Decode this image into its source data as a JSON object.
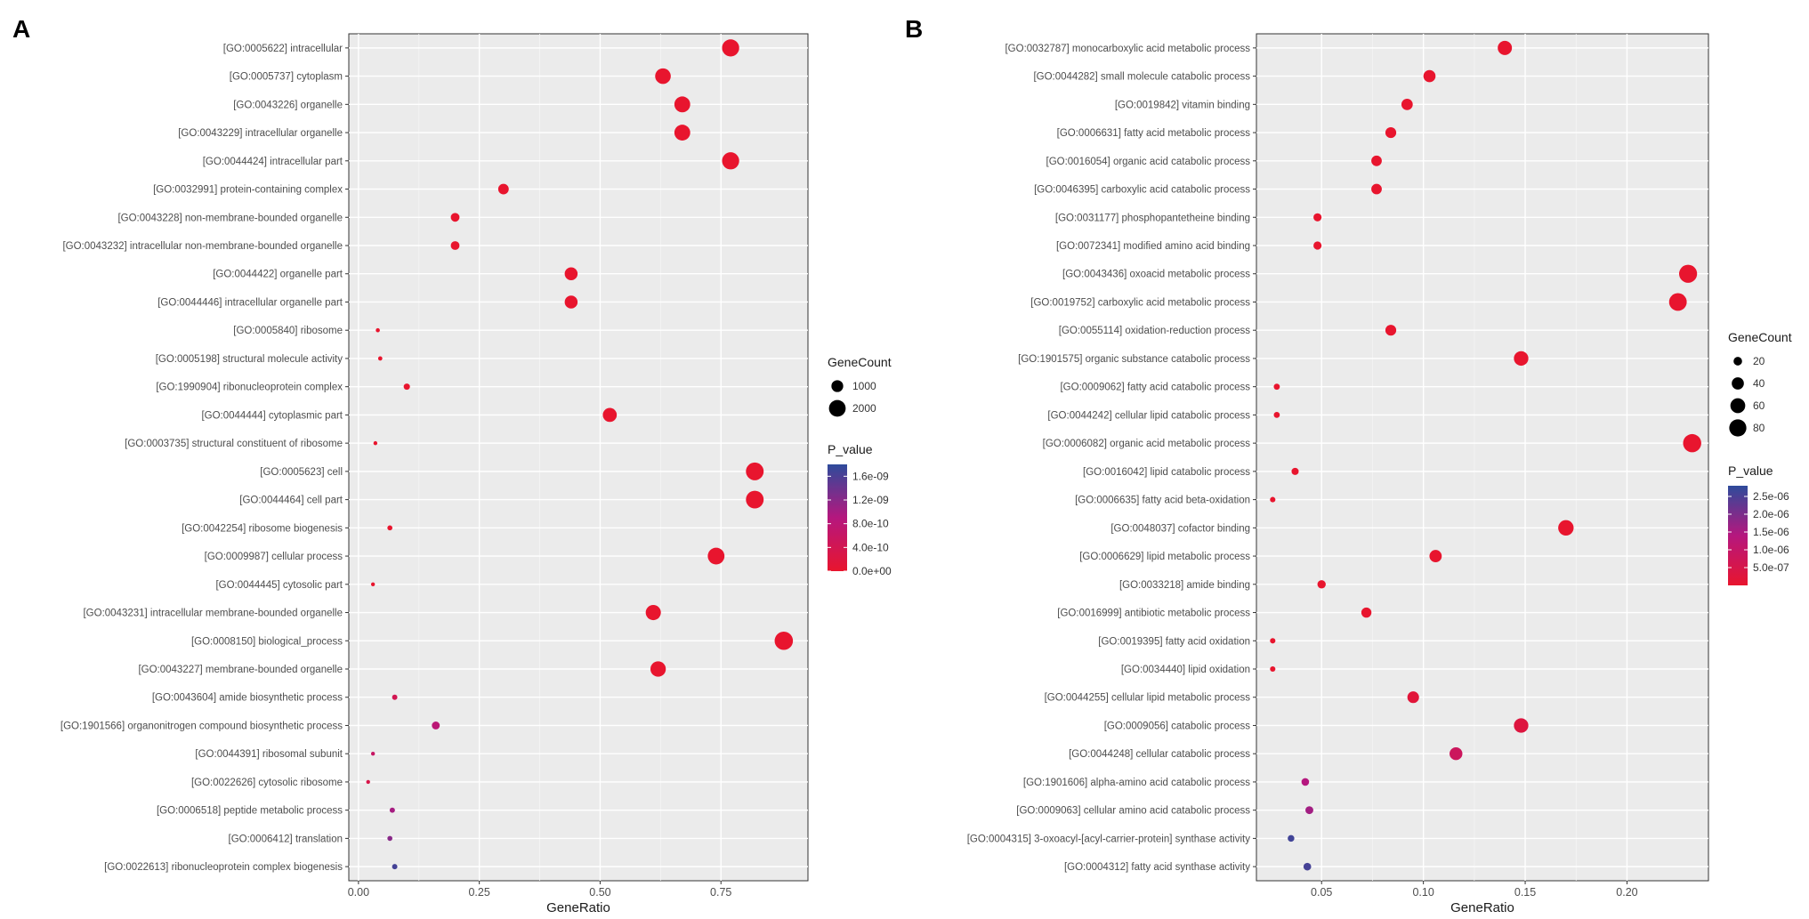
{
  "colors": {
    "low_p": "#e8152e",
    "mid_p": "#b5177e",
    "high_p": "#2e4b9b",
    "panel_bg": "#ebebeb",
    "grid": "#ffffff"
  },
  "chart_data": [
    {
      "panel": "A",
      "type": "scatter",
      "xlabel": "GeneRatio",
      "xlim": [
        -0.02,
        0.93
      ],
      "xticks": [
        "0.00",
        "0.25",
        "0.50",
        "0.75"
      ],
      "xtick_values": [
        0,
        0.25,
        0.5,
        0.75
      ],
      "size_legend": {
        "title": "GeneCount",
        "labels": [
          "1000",
          "2000"
        ],
        "values": [
          1000,
          2000
        ]
      },
      "color_legend": {
        "title": "P_value",
        "labels": [
          "1.6e-09",
          "1.2e-09",
          "8.0e-10",
          "4.0e-10",
          "0.0e+00"
        ],
        "values": [
          1.6e-09,
          1.2e-09,
          8e-10,
          4e-10,
          0
        ],
        "range": [
          0,
          1.8e-09
        ]
      },
      "size_range": [
        0,
        2500
      ],
      "terms": [
        {
          "label": "[GO:0005622] intracellular",
          "x": 0.77,
          "count": 2100,
          "p": 0
        },
        {
          "label": "[GO:0005737] cytoplasm",
          "x": 0.63,
          "count": 1750,
          "p": 0
        },
        {
          "label": "[GO:0043226] organelle",
          "x": 0.67,
          "count": 1800,
          "p": 0
        },
        {
          "label": "[GO:0043229] intracellular organelle",
          "x": 0.67,
          "count": 1800,
          "p": 0
        },
        {
          "label": "[GO:0044424] intracellular part",
          "x": 0.77,
          "count": 2100,
          "p": 0
        },
        {
          "label": "[GO:0032991] protein-containing complex",
          "x": 0.3,
          "count": 800,
          "p": 0
        },
        {
          "label": "[GO:0043228] non-membrane-bounded organelle",
          "x": 0.2,
          "count": 550,
          "p": 0
        },
        {
          "label": "[GO:0043232] intracellular non-membrane-bounded organelle",
          "x": 0.2,
          "count": 550,
          "p": 0
        },
        {
          "label": "[GO:0044422] organelle part",
          "x": 0.44,
          "count": 1200,
          "p": 0
        },
        {
          "label": "[GO:0044446] intracellular organelle part",
          "x": 0.44,
          "count": 1200,
          "p": 0
        },
        {
          "label": "[GO:0005840] ribosome",
          "x": 0.04,
          "count": 120,
          "p": 0
        },
        {
          "label": "[GO:0005198] structural molecule activity",
          "x": 0.045,
          "count": 130,
          "p": 0
        },
        {
          "label": "[GO:1990904] ribonucleoprotein complex",
          "x": 0.1,
          "count": 280,
          "p": 0
        },
        {
          "label": "[GO:0044444] cytoplasmic part",
          "x": 0.52,
          "count": 1400,
          "p": 0
        },
        {
          "label": "[GO:0003735] structural constituent of ribosome",
          "x": 0.035,
          "count": 100,
          "p": 0
        },
        {
          "label": "[GO:0005623] cell",
          "x": 0.82,
          "count": 2250,
          "p": 0
        },
        {
          "label": "[GO:0044464] cell part",
          "x": 0.82,
          "count": 2250,
          "p": 0
        },
        {
          "label": "[GO:0042254] ribosome biogenesis",
          "x": 0.065,
          "count": 180,
          "p": 0
        },
        {
          "label": "[GO:0009987] cellular process",
          "x": 0.74,
          "count": 2000,
          "p": 0
        },
        {
          "label": "[GO:0044445] cytosolic part",
          "x": 0.03,
          "count": 90,
          "p": 0
        },
        {
          "label": "[GO:0043231] intracellular membrane-bounded organelle",
          "x": 0.61,
          "count": 1650,
          "p": 0
        },
        {
          "label": "[GO:0008150] biological_process",
          "x": 0.88,
          "count": 2400,
          "p": 0
        },
        {
          "label": "[GO:0043227] membrane-bounded organelle",
          "x": 0.62,
          "count": 1700,
          "p": 0
        },
        {
          "label": "[GO:0043604] amide biosynthetic process",
          "x": 0.075,
          "count": 200,
          "p": 4e-10
        },
        {
          "label": "[GO:1901566] organonitrogen compound biosynthetic process",
          "x": 0.16,
          "count": 450,
          "p": 8e-10
        },
        {
          "label": "[GO:0044391] ribosomal subunit",
          "x": 0.03,
          "count": 90,
          "p": 6e-10
        },
        {
          "label": "[GO:0022626] cytosolic ribosome",
          "x": 0.02,
          "count": 60,
          "p": 3e-10
        },
        {
          "label": "[GO:0006518] peptide metabolic process",
          "x": 0.07,
          "count": 200,
          "p": 1e-09
        },
        {
          "label": "[GO:0006412] translation",
          "x": 0.065,
          "count": 180,
          "p": 1.2e-09
        },
        {
          "label": "[GO:0022613] ribonucleoprotein complex biogenesis",
          "x": 0.075,
          "count": 200,
          "p": 1.65e-09
        }
      ]
    },
    {
      "panel": "B",
      "type": "scatter",
      "xlabel": "GeneRatio",
      "xlim": [
        0.018,
        0.24
      ],
      "xticks": [
        "0.05",
        "0.10",
        "0.15",
        "0.20"
      ],
      "xtick_values": [
        0.05,
        0.1,
        0.15,
        0.2
      ],
      "size_legend": {
        "title": "GeneCount",
        "labels": [
          "20",
          "40",
          "60",
          "80"
        ],
        "values": [
          20,
          40,
          60,
          80
        ]
      },
      "color_legend": {
        "title": "P_value",
        "labels": [
          "2.5e-06",
          "2.0e-06",
          "1.5e-06",
          "1.0e-06",
          "5.0e-07"
        ],
        "values": [
          2.5e-06,
          2e-06,
          1.5e-06,
          1e-06,
          5e-07
        ],
        "range": [
          0,
          2.8e-06
        ]
      },
      "size_range": [
        0,
        95
      ],
      "terms": [
        {
          "label": "[GO:0032787] monocarboxylic acid metabolic process",
          "x": 0.14,
          "count": 55,
          "p": 0
        },
        {
          "label": "[GO:0044282] small molecule catabolic process",
          "x": 0.103,
          "count": 40,
          "p": 0
        },
        {
          "label": "[GO:0019842] vitamin binding",
          "x": 0.092,
          "count": 35,
          "p": 0
        },
        {
          "label": "[GO:0006631] fatty acid metabolic process",
          "x": 0.084,
          "count": 32,
          "p": 0
        },
        {
          "label": "[GO:0016054] organic acid catabolic process",
          "x": 0.077,
          "count": 30,
          "p": 0
        },
        {
          "label": "[GO:0046395] carboxylic acid catabolic process",
          "x": 0.077,
          "count": 30,
          "p": 0
        },
        {
          "label": "[GO:0031177] phosphopantetheine binding",
          "x": 0.048,
          "count": 18,
          "p": 0
        },
        {
          "label": "[GO:0072341] modified amino acid binding",
          "x": 0.048,
          "count": 18,
          "p": 0
        },
        {
          "label": "[GO:0043436] oxoacid metabolic process",
          "x": 0.23,
          "count": 88,
          "p": 0
        },
        {
          "label": "[GO:0019752] carboxylic acid metabolic process",
          "x": 0.225,
          "count": 85,
          "p": 0
        },
        {
          "label": "[GO:0055114] oxidation-reduction process",
          "x": 0.084,
          "count": 32,
          "p": 0
        },
        {
          "label": "[GO:1901575] organic substance catabolic process",
          "x": 0.148,
          "count": 57,
          "p": 0
        },
        {
          "label": "[GO:0009062] fatty acid catabolic process",
          "x": 0.028,
          "count": 10,
          "p": 0
        },
        {
          "label": "[GO:0044242] cellular lipid catabolic process",
          "x": 0.028,
          "count": 10,
          "p": 0
        },
        {
          "label": "[GO:0006082] organic acid metabolic process",
          "x": 0.232,
          "count": 90,
          "p": 0
        },
        {
          "label": "[GO:0016042] lipid catabolic process",
          "x": 0.037,
          "count": 14,
          "p": 0
        },
        {
          "label": "[GO:0006635] fatty acid beta-oxidation",
          "x": 0.026,
          "count": 8,
          "p": 0
        },
        {
          "label": "[GO:0048037] cofactor binding",
          "x": 0.17,
          "count": 65,
          "p": 0
        },
        {
          "label": "[GO:0006629] lipid metabolic process",
          "x": 0.106,
          "count": 41,
          "p": 0
        },
        {
          "label": "[GO:0033218] amide binding",
          "x": 0.05,
          "count": 19,
          "p": 0
        },
        {
          "label": "[GO:0016999] antibiotic metabolic process",
          "x": 0.072,
          "count": 28,
          "p": 0
        },
        {
          "label": "[GO:0019395] fatty acid oxidation",
          "x": 0.026,
          "count": 8,
          "p": 0
        },
        {
          "label": "[GO:0034440] lipid oxidation",
          "x": 0.026,
          "count": 8,
          "p": 0
        },
        {
          "label": "[GO:0044255] cellular lipid metabolic process",
          "x": 0.095,
          "count": 37,
          "p": 2e-07
        },
        {
          "label": "[GO:0009056] catabolic process",
          "x": 0.148,
          "count": 57,
          "p": 3e-07
        },
        {
          "label": "[GO:0044248] cellular catabolic process",
          "x": 0.116,
          "count": 45,
          "p": 8e-07
        },
        {
          "label": "[GO:1901606] alpha-amino acid catabolic process",
          "x": 0.042,
          "count": 16,
          "p": 1.4e-06
        },
        {
          "label": "[GO:0009063] cellular amino acid catabolic process",
          "x": 0.044,
          "count": 17,
          "p": 1.6e-06
        },
        {
          "label": "[GO:0004315] 3-oxoacyl-[acyl-carrier-protein] synthase activity",
          "x": 0.035,
          "count": 12,
          "p": 2.6e-06
        },
        {
          "label": "[GO:0004312] fatty acid synthase activity",
          "x": 0.043,
          "count": 16,
          "p": 2.55e-06
        }
      ]
    }
  ]
}
